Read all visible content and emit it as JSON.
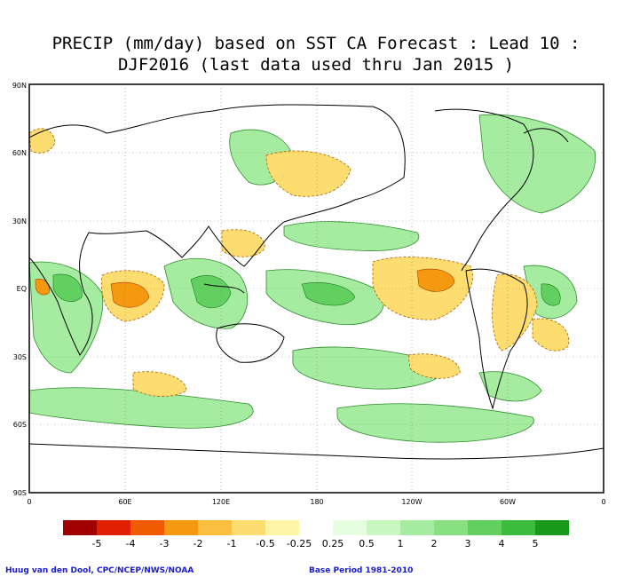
{
  "title": {
    "line1": "PRECIP (mm/day) based on SST CA Forecast : Lead 10 :",
    "line2": "DJF2016 (last data used thru Jan 2015 )"
  },
  "axes": {
    "lat_labels": [
      "90N",
      "60N",
      "30N",
      "EQ",
      "30S",
      "60S",
      "90S"
    ],
    "lon_labels": [
      "0",
      "60E",
      "120E",
      "180",
      "120W",
      "60W",
      "0"
    ]
  },
  "legend": {
    "bins": [
      {
        "color": "#a00000",
        "label": ""
      },
      {
        "color": "#e02000",
        "label": "-5"
      },
      {
        "color": "#f05a00",
        "label": "-4"
      },
      {
        "color": "#f59a10",
        "label": "-3"
      },
      {
        "color": "#fbbf40",
        "label": "-2"
      },
      {
        "color": "#fddd70",
        "label": "-1"
      },
      {
        "color": "#fff5a8",
        "label": "-0.5"
      },
      {
        "color": "#ffffff",
        "label": "-0.25"
      },
      {
        "color": "#e6ffe0",
        "label": "0.25"
      },
      {
        "color": "#c8f8c0",
        "label": "0.5"
      },
      {
        "color": "#a6eca0",
        "label": "1"
      },
      {
        "color": "#88e080",
        "label": "2"
      },
      {
        "color": "#62d060",
        "label": "3"
      },
      {
        "color": "#3cbc3c",
        "label": "4"
      },
      {
        "color": "#1a9a1a",
        "label": "5"
      }
    ]
  },
  "credits": {
    "left": "Huug van den Dool, CPC/NCEP/NWS/NOAA",
    "right": "Base Period 1981-2010"
  }
}
